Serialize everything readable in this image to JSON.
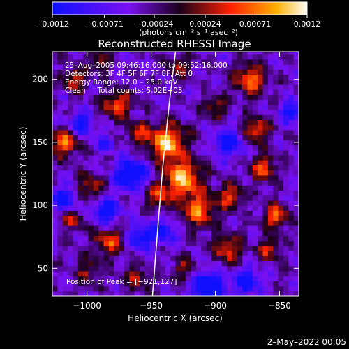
{
  "chart_data": {
    "type": "heatmap",
    "title": "Reconstructed RHESSI Image",
    "xlabel": "Heliocentric X (arcsec)",
    "ylabel": "Heliocentric Y (arcsec)",
    "xlim": [
      -1027,
      -835
    ],
    "ylim": [
      28,
      222
    ],
    "x_ticks": [
      -1000,
      -950,
      -900,
      -850
    ],
    "x_tick_labels": [
      "−1000",
      "−950",
      "−900",
      "−850"
    ],
    "y_ticks": [
      50,
      100,
      150,
      200
    ],
    "y_tick_labels": [
      "50",
      "100",
      "150",
      "200"
    ],
    "colorbar": {
      "range": [
        -0.0012,
        0.0012
      ],
      "ticks": [
        -0.0012,
        -0.00071,
        -0.00024,
        0.00024,
        0.00071,
        0.0012
      ],
      "tick_labels": [
        "−0.0012",
        "−0.00071",
        "−0.00024",
        "0.00024",
        "0.00071",
        "0.0012"
      ],
      "units": "(photons cm⁻² s⁻¹ asec⁻²)",
      "stops": [
        "#1010ff",
        "#7a10f0",
        "#1a001a",
        "#ff2000",
        "#ffb000",
        "#ffffff"
      ]
    },
    "annotations": [
      "25–Aug–2005 09:46:16.000 to 09:52:16.000",
      "Detectors: 3F 4F 5F 6F 7F 8F, Att 0",
      "Energy Range: 12.0 – 25.0 keV",
      "Clean     Total counts: 5.02E+03"
    ],
    "peak_label": "Position of Peak = [−921,127]",
    "peak": [
      -921,
      127
    ],
    "limb_curve": [
      [
        -949,
        28
      ],
      [
        -945,
        80
      ],
      [
        -941,
        130
      ],
      [
        -936,
        180
      ],
      [
        -931,
        222
      ]
    ],
    "grid": false
  },
  "footer": {
    "timestamp": "2–May–2022 00:05"
  }
}
